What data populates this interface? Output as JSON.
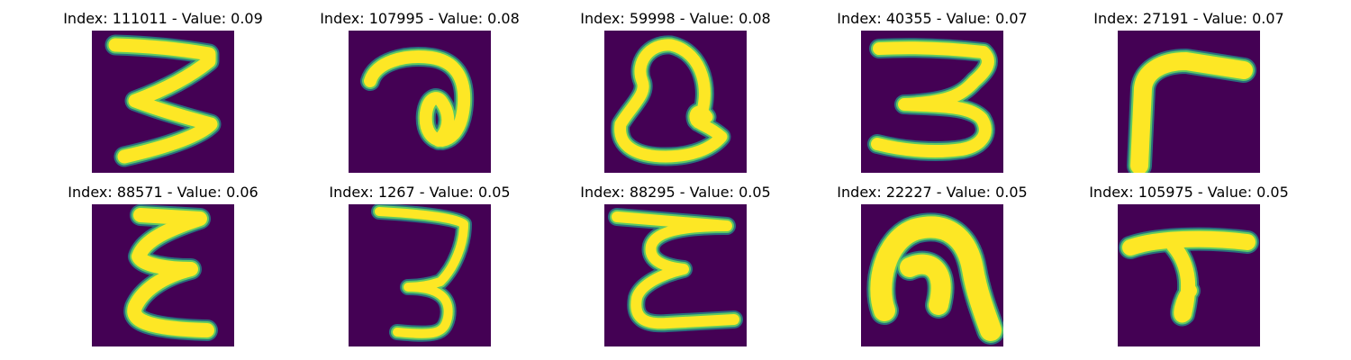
{
  "panels": [
    {
      "title": "Index: 111011 - Value: 0.09",
      "glyph": "three-zigzag"
    },
    {
      "title": "Index: 107995 - Value: 0.08",
      "glyph": "loop-a"
    },
    {
      "title": "Index: 59998 - Value: 0.08",
      "glyph": "heart-loop"
    },
    {
      "title": "Index: 40355 - Value: 0.07",
      "glyph": "three-curly"
    },
    {
      "title": "Index: 27191 - Value: 0.07",
      "glyph": "gamma"
    },
    {
      "title": "Index: 88571 - Value: 0.06",
      "glyph": "epsilon"
    },
    {
      "title": "Index: 1267 - Value: 0.05",
      "glyph": "three-thin"
    },
    {
      "title": "Index: 88295 - Value: 0.05",
      "glyph": "epsilon-wide"
    },
    {
      "title": "Index: 22227 - Value: 0.05",
      "glyph": "arch"
    },
    {
      "title": "Index: 105975 - Value: 0.05",
      "glyph": "t-hook"
    }
  ],
  "colors": {
    "background": "#440154",
    "stroke_core": "#fde725",
    "stroke_edge": "#5ec962",
    "stroke_halo": "#21918c"
  }
}
